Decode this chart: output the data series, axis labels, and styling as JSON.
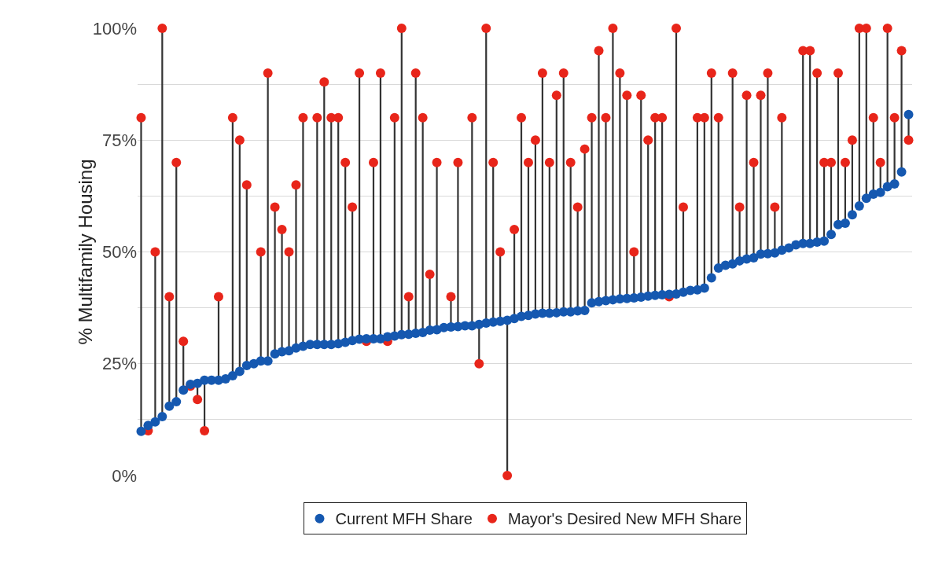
{
  "chart_data": {
    "type": "scatter",
    "ylabel": "% Multifamily Housing",
    "categories": [
      null,
      null,
      null,
      null,
      null,
      null,
      null,
      null,
      null,
      null,
      null,
      null,
      null,
      null,
      null,
      null,
      null,
      null,
      null,
      null,
      null,
      null,
      null,
      null,
      null,
      null,
      null,
      null,
      null,
      null,
      null,
      null,
      null,
      null,
      null,
      null,
      null,
      null,
      null,
      null,
      null,
      null,
      null,
      null,
      null,
      null,
      null,
      null,
      null,
      null,
      null,
      null,
      null,
      null,
      null,
      null,
      null,
      null,
      null,
      null,
      null,
      null,
      null,
      null,
      null,
      null,
      null,
      null,
      null,
      null,
      null,
      null,
      null,
      null,
      null,
      null,
      null,
      null,
      null,
      null,
      null,
      null,
      null,
      null,
      null,
      null,
      null,
      null,
      null,
      null,
      null,
      null,
      null,
      null,
      null,
      null,
      null,
      null,
      null,
      null,
      null,
      null,
      null,
      null,
      null,
      null,
      null,
      null,
      null,
      null
    ],
    "series": [
      {
        "name": "Current MFH Share",
        "color": "#1558b0",
        "values": [
          9.9,
          11.2,
          12,
          13.2,
          15.5,
          16.5,
          19.1,
          20.4,
          20.6,
          21.3,
          21.3,
          21.3,
          21.6,
          22.3,
          23.3,
          24.6,
          25,
          25.6,
          25.6,
          27.2,
          27.7,
          27.9,
          28.5,
          28.9,
          29.3,
          29.3,
          29.3,
          29.3,
          29.5,
          29.8,
          30.2,
          30.5,
          30.6,
          30.6,
          30.6,
          31,
          31.2,
          31.5,
          31.6,
          31.8,
          32,
          32.5,
          32.6,
          33.1,
          33.2,
          33.3,
          33.5,
          33.5,
          33.8,
          34.1,
          34.3,
          34.5,
          34.7,
          35.1,
          35.6,
          35.8,
          36.1,
          36.3,
          36.3,
          36.4,
          36.6,
          36.6,
          36.8,
          36.9,
          38.6,
          38.9,
          39.1,
          39.3,
          39.5,
          39.6,
          39.7,
          39.9,
          40.1,
          40.3,
          40.4,
          40.5,
          40.6,
          41,
          41.4,
          41.5,
          41.9,
          44.2,
          46.4,
          47,
          47.3,
          48,
          48.4,
          48.7,
          49.5,
          49.6,
          49.8,
          50.4,
          50.9,
          51.6,
          51.9,
          51.9,
          52.2,
          52.4,
          53.9,
          56.1,
          56.4,
          58.3,
          60.3,
          62,
          62.9,
          63.3,
          64.6,
          65.2,
          67.9,
          80.7
        ]
      },
      {
        "name": "Mayor's Desired New MFH Share",
        "color": "#e8251a",
        "values": [
          80,
          10,
          50,
          100,
          40,
          70,
          30,
          20,
          17,
          10,
          null,
          40,
          null,
          80,
          75,
          65,
          null,
          50,
          90,
          60,
          55,
          50,
          65,
          80,
          null,
          80,
          88,
          80,
          80,
          70,
          60,
          90,
          30,
          70,
          90,
          30,
          80,
          100,
          40,
          90,
          80,
          45,
          70,
          null,
          40,
          70,
          null,
          80,
          25,
          100,
          70,
          50,
          0,
          55,
          80,
          70,
          75,
          90,
          70,
          85,
          90,
          70,
          60,
          73,
          80,
          95,
          80,
          100,
          90,
          85,
          50,
          85,
          75,
          80,
          80,
          40,
          100,
          60,
          null,
          80,
          80,
          90,
          80,
          null,
          90,
          60,
          85,
          70,
          85,
          90,
          60,
          80,
          null,
          null,
          95,
          95,
          90,
          70,
          70,
          90,
          70,
          75,
          100,
          100,
          80,
          70,
          100,
          80,
          95,
          75
        ]
      }
    ],
    "ylim": [
      0,
      100
    ],
    "yticks": [
      {
        "value": 0,
        "label": "0%"
      },
      {
        "value": 12.5,
        "label": null
      },
      {
        "value": 25,
        "label": "25%"
      },
      {
        "value": 37.5,
        "label": null
      },
      {
        "value": 50,
        "label": "50%"
      },
      {
        "value": 62.5,
        "label": null
      },
      {
        "value": 75,
        "label": "75%"
      },
      {
        "value": 87.5,
        "label": null
      },
      {
        "value": 100,
        "label": "100%"
      }
    ],
    "grid": "y",
    "legend": "bottom",
    "tick_labels": "y",
    "marker": "circle"
  }
}
